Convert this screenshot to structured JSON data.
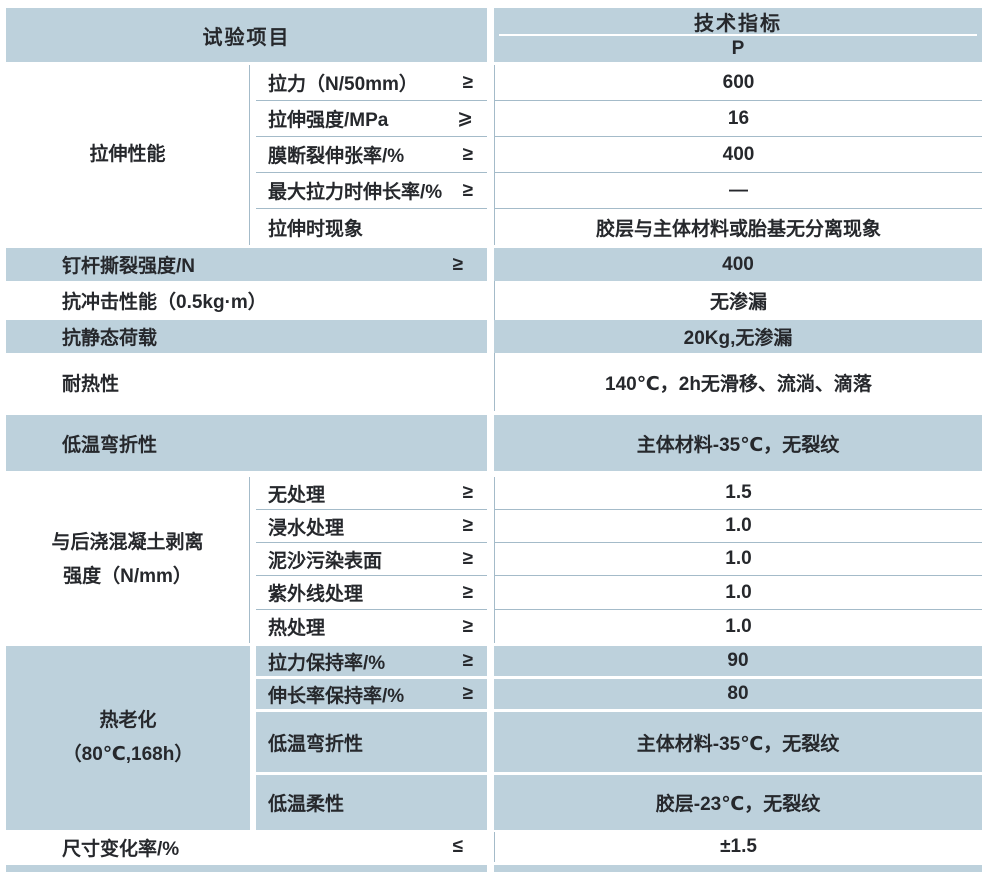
{
  "header": {
    "left": "试验项目",
    "right": "技术指标",
    "grade": "P"
  },
  "colors": {
    "section_blue": "#bdd1dc",
    "separator_line": "#a4bbc9",
    "text": "#26282c"
  },
  "sections": [
    {
      "type": "group",
      "bg": "white",
      "name": "拉伸性能",
      "name2": "",
      "rows": [
        {
          "label": "拉力（N/50mm）",
          "sym": "≥",
          "value": "600"
        },
        {
          "label": "拉伸强度/MPa",
          "sym": "⩾",
          "value": "16"
        },
        {
          "label": "膜断裂伸张率/%",
          "sym": "≥",
          "value": "400"
        },
        {
          "label": "最大拉力时伸长率/%",
          "sym": "≥",
          "value": "—"
        },
        {
          "label": "拉伸时现象",
          "sym": "",
          "value": "胶层与主体材料或胎基无分离现象"
        }
      ]
    },
    {
      "type": "single",
      "bg": "blue",
      "label": "钉杆撕裂强度/N",
      "sym": "≥",
      "value": "400"
    },
    {
      "type": "single",
      "bg": "white",
      "label": "抗冲击性能（0.5kg·m）",
      "sym": "",
      "value": "无渗漏"
    },
    {
      "type": "single",
      "bg": "blue",
      "label": "抗静态荷载",
      "sym": "",
      "value": "20Kg,无渗漏"
    },
    {
      "type": "single",
      "bg": "white",
      "label": "耐热性",
      "sym": "",
      "value": "140℃，2h无滑移、流淌、滴落"
    },
    {
      "type": "single",
      "bg": "blue",
      "label": "低温弯折性",
      "sym": "",
      "value": "主体材料-35℃，无裂纹"
    },
    {
      "type": "group",
      "bg": "white",
      "name": "与后浇混凝土剥离",
      "name2": "强度（N/mm）",
      "rows": [
        {
          "label": "无处理",
          "sym": "≥",
          "value": "1.5"
        },
        {
          "label": "浸水处理",
          "sym": "≥",
          "value": "1.0"
        },
        {
          "label": "泥沙污染表面",
          "sym": "≥",
          "value": "1.0"
        },
        {
          "label": "紫外线处理",
          "sym": "≥",
          "value": "1.0"
        },
        {
          "label": "热处理",
          "sym": "≥",
          "value": "1.0"
        }
      ]
    },
    {
      "type": "group",
      "bg": "blue",
      "name": "热老化",
      "name2": "（80℃,168h）",
      "rows": [
        {
          "label": "拉力保持率/%",
          "sym": "≥",
          "value": "90"
        },
        {
          "label": "伸长率保持率/%",
          "sym": "≥",
          "value": "80"
        },
        {
          "label": "低温弯折性",
          "sym": "",
          "value": "主体材料-35℃，无裂纹"
        },
        {
          "label": "低温柔性",
          "sym": "",
          "value": "胶层-23℃，无裂纹"
        }
      ]
    },
    {
      "type": "single",
      "bg": "white",
      "label": "尺寸变化率/%",
      "sym": "≤",
      "value": "±1.5"
    }
  ]
}
